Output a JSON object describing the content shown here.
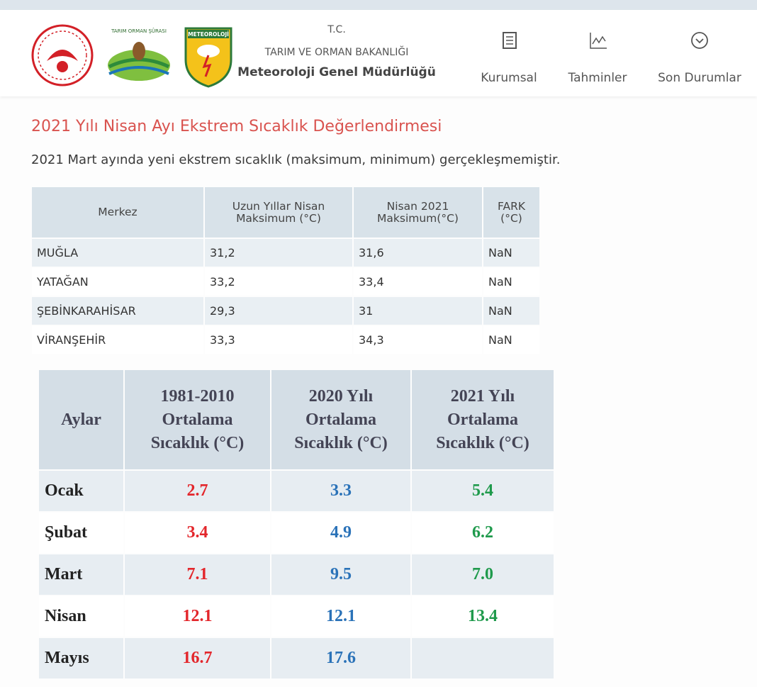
{
  "header": {
    "logo_texts": [
      "TARIM ORMAN ŞÛRASI",
      "METEOROLOJİ"
    ],
    "org": [
      "T.C.",
      "TARIM VE ORMAN BAKANLIĞI",
      "Meteoroloji Genel Müdürlüğü"
    ],
    "nav": [
      "Kurumsal",
      "Tahminler",
      "Son Durumlar"
    ]
  },
  "title": "2021 Yılı Nisan Ayı Ekstrem Sıcaklık Değerlendirmesi",
  "subtitle": "2021 Mart ayında yeni ekstrem sıcaklık (maksimum, minimum) gerçekleşmemiştir.",
  "table1": {
    "headers": [
      "Merkez",
      "Uzun Yıllar Nisan Maksimum (°C)",
      "Nisan 2021 Maksimum(°C)",
      "FARK (°C)"
    ],
    "rows": [
      [
        "MUĞLA",
        "31,2",
        "31,6",
        "NaN"
      ],
      [
        "YATAĞAN",
        "33,2",
        "33,4",
        "NaN"
      ],
      [
        "ŞEBİNKARAHİSAR",
        "29,3",
        "31",
        "NaN"
      ],
      [
        "VİRANŞEHİR",
        "33,3",
        "34,3",
        "NaN"
      ]
    ]
  },
  "table2": {
    "headers": [
      "Aylar",
      "1981-2010 Ortalama Sıcaklık (°C)",
      "2020 Yılı Ortalama Sıcaklık (°C)",
      "2021 Yılı Ortalama Sıcaklık (°C)"
    ],
    "colors": [
      "#222222",
      "#e3262b",
      "#2a72b8",
      "#1f9a4c"
    ],
    "rows": [
      [
        "Ocak",
        "2.7",
        "3.3",
        "5.4"
      ],
      [
        "Şubat",
        "3.4",
        "4.9",
        "6.2"
      ],
      [
        "Mart",
        "7.1",
        "9.5",
        "7.0"
      ],
      [
        "Nisan",
        "12.1",
        "12.1",
        "13.4"
      ],
      [
        "Mayıs",
        "16.7",
        "17.6"
      ]
    ]
  }
}
